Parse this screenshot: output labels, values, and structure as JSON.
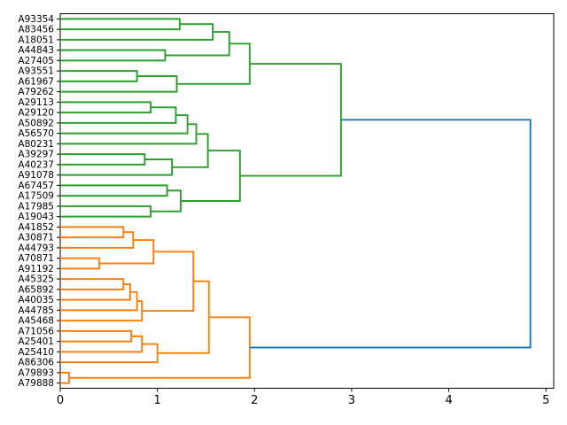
{
  "figure": {
    "background": "#ffffff",
    "frame_color": "#000000"
  },
  "chart_data": {
    "type": "dendrogram",
    "title": "",
    "xlabel": "",
    "ylabel": "",
    "orientation": "right",
    "grid": false,
    "legend": null,
    "x_axis": {
      "ticks": [
        "0",
        "1",
        "2",
        "3",
        "4",
        "5"
      ],
      "tick_values": [
        0,
        1,
        2,
        3,
        4,
        5
      ],
      "range": [
        0,
        5.08
      ]
    },
    "palette": {
      "green": "#2ca02c",
      "orange": "#ff7f0e",
      "blue": "#1f77b4"
    },
    "leaves": [
      "A93354",
      "A83456",
      "A18051",
      "A44843",
      "A27405",
      "A93551",
      "A61967",
      "A79262",
      "A29113",
      "A29120",
      "A50892",
      "A56570",
      "A80231",
      "A39297",
      "A40237",
      "A91078",
      "A67457",
      "A17509",
      "A17985",
      "A19043",
      "A41852",
      "A30871",
      "A44793",
      "A70871",
      "A91192",
      "A45325",
      "A65892",
      "A40035",
      "A44785",
      "A45468",
      "A71056",
      "A25401",
      "A25410",
      "A86306",
      "A79893",
      "A79888"
    ],
    "merges": [
      {
        "children": [
          0,
          1
        ],
        "dist": 1.23,
        "color": "green"
      },
      {
        "children": [
          36,
          2
        ],
        "dist": 1.57,
        "color": "green"
      },
      {
        "children": [
          3,
          4
        ],
        "dist": 1.08,
        "color": "green"
      },
      {
        "children": [
          37,
          38
        ],
        "dist": 1.74,
        "color": "green"
      },
      {
        "children": [
          5,
          6
        ],
        "dist": 0.79,
        "color": "green"
      },
      {
        "children": [
          40,
          7
        ],
        "dist": 1.2,
        "color": "green"
      },
      {
        "children": [
          39,
          41
        ],
        "dist": 1.95,
        "color": "green"
      },
      {
        "children": [
          8,
          9
        ],
        "dist": 0.93,
        "color": "green"
      },
      {
        "children": [
          43,
          10
        ],
        "dist": 1.19,
        "color": "green"
      },
      {
        "children": [
          44,
          11
        ],
        "dist": 1.31,
        "color": "green"
      },
      {
        "children": [
          45,
          12
        ],
        "dist": 1.4,
        "color": "green"
      },
      {
        "children": [
          13,
          14
        ],
        "dist": 0.87,
        "color": "green"
      },
      {
        "children": [
          47,
          15
        ],
        "dist": 1.15,
        "color": "green"
      },
      {
        "children": [
          46,
          48
        ],
        "dist": 1.52,
        "color": "green"
      },
      {
        "children": [
          16,
          17
        ],
        "dist": 1.1,
        "color": "green"
      },
      {
        "children": [
          18,
          19
        ],
        "dist": 0.93,
        "color": "green"
      },
      {
        "children": [
          50,
          51
        ],
        "dist": 1.24,
        "color": "green"
      },
      {
        "children": [
          49,
          52
        ],
        "dist": 1.85,
        "color": "green"
      },
      {
        "children": [
          42,
          53
        ],
        "dist": 2.89,
        "color": "green"
      },
      {
        "children": [
          20,
          21
        ],
        "dist": 0.65,
        "color": "orange"
      },
      {
        "children": [
          55,
          22
        ],
        "dist": 0.75,
        "color": "orange"
      },
      {
        "children": [
          23,
          24
        ],
        "dist": 0.4,
        "color": "orange"
      },
      {
        "children": [
          56,
          57
        ],
        "dist": 0.96,
        "color": "orange"
      },
      {
        "children": [
          25,
          26
        ],
        "dist": 0.65,
        "color": "orange"
      },
      {
        "children": [
          59,
          27
        ],
        "dist": 0.72,
        "color": "orange"
      },
      {
        "children": [
          60,
          28
        ],
        "dist": 0.79,
        "color": "orange"
      },
      {
        "children": [
          61,
          29
        ],
        "dist": 0.84,
        "color": "orange"
      },
      {
        "children": [
          58,
          62
        ],
        "dist": 1.37,
        "color": "orange"
      },
      {
        "children": [
          30,
          31
        ],
        "dist": 0.73,
        "color": "orange"
      },
      {
        "children": [
          64,
          32
        ],
        "dist": 0.84,
        "color": "orange"
      },
      {
        "children": [
          65,
          33
        ],
        "dist": 1.0,
        "color": "orange"
      },
      {
        "children": [
          63,
          66
        ],
        "dist": 1.53,
        "color": "orange"
      },
      {
        "children": [
          34,
          35
        ],
        "dist": 0.09,
        "color": "orange"
      },
      {
        "children": [
          67,
          68
        ],
        "dist": 1.95,
        "color": "orange"
      },
      {
        "children": [
          54,
          69
        ],
        "dist": 4.84,
        "color": "blue"
      }
    ]
  }
}
